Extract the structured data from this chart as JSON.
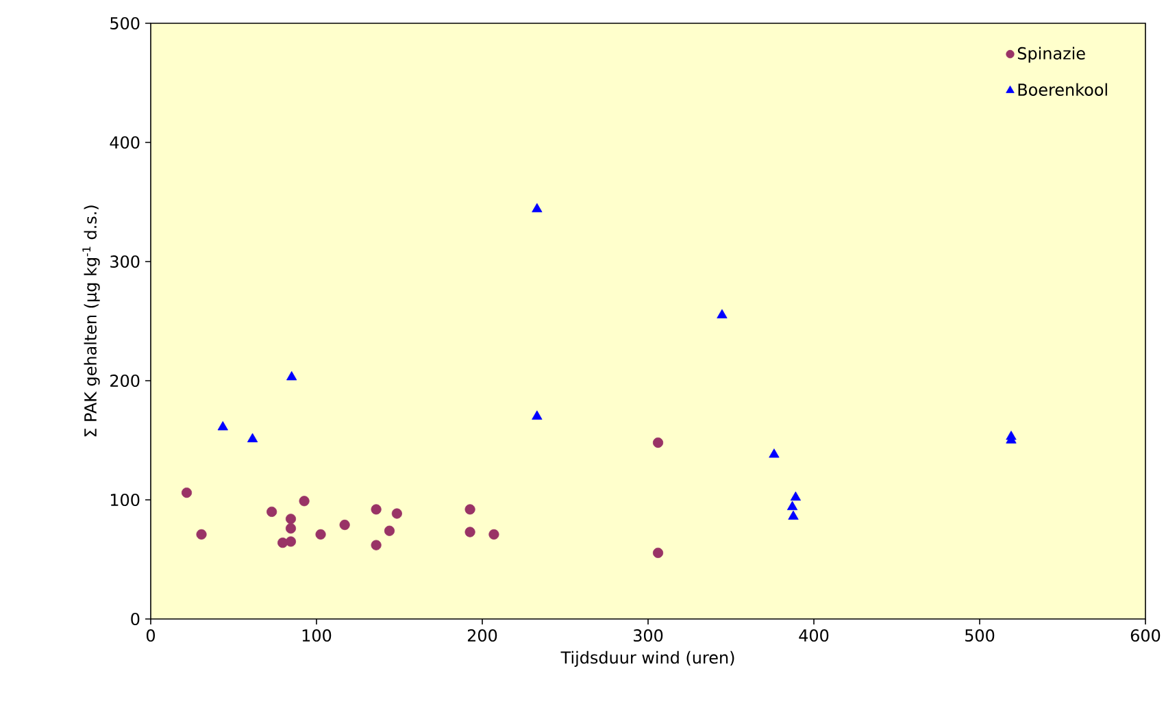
{
  "chart_data": {
    "type": "scatter",
    "xlabel": "Tijdsduur wind (uren)",
    "ylabel": "Σ PAK gehalten (µg kg$^{-1}$ d.s.)",
    "xlim": [
      0,
      600
    ],
    "xticks": [
      0,
      100,
      200,
      300,
      400,
      500,
      600
    ],
    "ylim": [
      0,
      500
    ],
    "yticks": [
      0,
      100,
      200,
      300,
      400,
      500
    ],
    "legend": "top right",
    "series": [
      {
        "name": "Spinazie",
        "color": "#993366",
        "marker": "circle",
        "x": [
          21.7,
          30.6,
          73,
          84.5,
          84.5,
          79.6,
          84.5,
          92.6,
          102.5,
          117,
          136,
          136,
          144,
          148.5,
          192.6,
          192.6,
          207,
          306,
          306
        ],
        "values": [
          106,
          71,
          90,
          84,
          76,
          64,
          65,
          99,
          71,
          79,
          92,
          62,
          74,
          88.5,
          92,
          73,
          71,
          148,
          55.5
        ]
      },
      {
        "name": "Boerenkool",
        "color": "#0000ff",
        "marker": "triangle",
        "x": [
          43.5,
          61.4,
          85,
          233,
          233,
          344.6,
          376,
          389,
          387,
          387.6,
          519,
          519
        ],
        "values": [
          161,
          151,
          203,
          344,
          170,
          255,
          138,
          102,
          94,
          86,
          150,
          153
        ]
      }
    ]
  }
}
